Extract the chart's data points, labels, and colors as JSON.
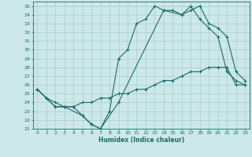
{
  "title": "",
  "xlabel": "Humidex (Indice chaleur)",
  "ylabel": "",
  "bg_color": "#cce8e8",
  "grid_color": "#aacccc",
  "line_color": "#1a6b6b",
  "xlim": [
    -0.5,
    23.5
  ],
  "ylim": [
    21,
    35.5
  ],
  "yticks": [
    21,
    22,
    23,
    24,
    25,
    26,
    27,
    28,
    29,
    30,
    31,
    32,
    33,
    34,
    35
  ],
  "xticks": [
    0,
    1,
    2,
    3,
    4,
    5,
    6,
    7,
    8,
    9,
    10,
    11,
    12,
    13,
    14,
    15,
    16,
    17,
    18,
    19,
    20,
    21,
    22,
    23
  ],
  "line1_x": [
    0,
    1,
    2,
    3,
    4,
    5,
    6,
    7,
    8,
    9,
    10,
    11,
    12,
    13,
    14,
    15,
    16,
    17,
    18,
    19,
    20,
    21,
    22,
    23
  ],
  "line1_y": [
    25.5,
    24.5,
    23.5,
    23.5,
    23.5,
    22.5,
    21.5,
    21.0,
    23.0,
    29.0,
    30.0,
    33.0,
    33.5,
    35.0,
    34.5,
    34.5,
    34.0,
    35.0,
    33.5,
    32.5,
    31.5,
    27.5,
    26.5,
    26.0
  ],
  "line2_x": [
    0,
    1,
    2,
    3,
    5,
    6,
    7,
    9,
    14,
    16,
    17,
    18,
    19,
    20,
    21,
    22,
    23
  ],
  "line2_y": [
    25.5,
    24.5,
    23.5,
    23.5,
    22.5,
    21.5,
    21.0,
    24.0,
    34.5,
    34.0,
    34.5,
    35.0,
    33.0,
    32.5,
    31.5,
    27.5,
    26.5
  ],
  "line3_x": [
    0,
    1,
    2,
    3,
    4,
    5,
    6,
    7,
    8,
    9,
    10,
    11,
    12,
    13,
    14,
    15,
    16,
    17,
    18,
    19,
    20,
    21,
    22,
    23
  ],
  "line3_y": [
    25.5,
    24.5,
    24.0,
    23.5,
    23.5,
    24.0,
    24.0,
    24.5,
    24.5,
    25.0,
    25.0,
    25.5,
    25.5,
    26.0,
    26.5,
    26.5,
    27.0,
    27.5,
    27.5,
    28.0,
    28.0,
    28.0,
    26.0,
    26.0
  ],
  "marker": "+"
}
